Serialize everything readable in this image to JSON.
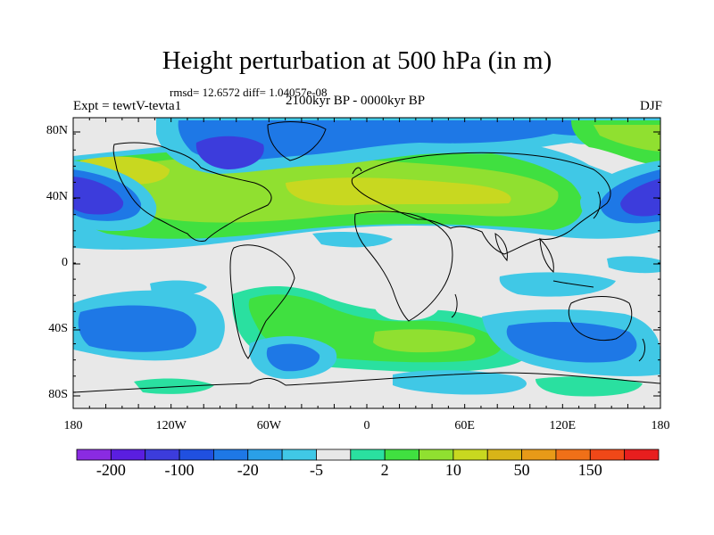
{
  "title": "Height perturbation at 500 hPa (in m)",
  "stats": "rmsd= 12.6572 diff= 1.04057e-08",
  "period": "2100kyr BP - 0000kyr BP",
  "experiment": "Expt = tewtV-tevta1",
  "season": "DJF",
  "lat_labels": [
    "80N",
    "40N",
    "0",
    "40S",
    "80S"
  ],
  "lon_labels": [
    "180",
    "120W",
    "60W",
    "0",
    "60E",
    "120E",
    "180"
  ],
  "colorbar": {
    "labels": [
      "-200",
      "-100",
      "-20",
      "-5",
      "2",
      "10",
      "50",
      "150"
    ],
    "colors": [
      "#8a2be2",
      "#5a1ee0",
      "#3c3cdc",
      "#2050e0",
      "#1e78e6",
      "#2aa0e8",
      "#40c8e6",
      "#e8e8e8",
      "#2ae0a0",
      "#40e040",
      "#90e030",
      "#c8d820",
      "#d8b418",
      "#e89a18",
      "#f07018",
      "#f04818",
      "#e81e1e"
    ]
  },
  "map_colors": {
    "neutral": "#e8e8e8",
    "light_blue": "#40c8e6",
    "mid_blue": "#1e78e6",
    "deep_blue": "#3c3cdc",
    "aqua": "#2ae0a0",
    "green": "#40e040",
    "yellow_green": "#90e030",
    "yellow": "#c8d820",
    "coast": "#000000"
  }
}
